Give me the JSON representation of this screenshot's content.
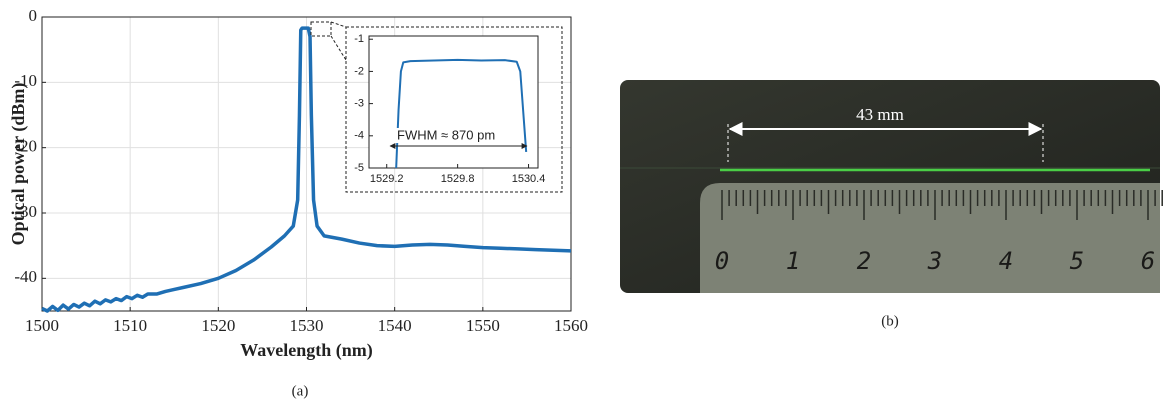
{
  "chart_data": [
    {
      "type": "line",
      "xlabel": "Wavelength (nm)",
      "ylabel": "Optical power (dBm)",
      "caption": "(a)",
      "xlim": [
        1500,
        1560
      ],
      "xticks": [
        1500,
        1510,
        1520,
        1530,
        1540,
        1550,
        1560
      ],
      "ylim": [
        -45,
        0
      ],
      "yticks": [
        -40,
        -30,
        -20,
        -10,
        0
      ],
      "grid": true,
      "x": [
        1500,
        1500.6,
        1501.2,
        1501.8,
        1502.4,
        1503,
        1503.6,
        1504.2,
        1504.8,
        1505.4,
        1506,
        1506.6,
        1507.2,
        1507.8,
        1508.4,
        1509,
        1509.6,
        1510.2,
        1510.8,
        1511.4,
        1512,
        1513,
        1514,
        1515,
        1516,
        1518,
        1520,
        1522,
        1524,
        1526,
        1527.5,
        1528.5,
        1529,
        1529.2,
        1529.35,
        1529.5,
        1530.2,
        1530.4,
        1530.55,
        1530.8,
        1531.2,
        1532,
        1534,
        1536,
        1538,
        1540,
        1542,
        1544,
        1546,
        1548,
        1550,
        1552,
        1554,
        1556,
        1558,
        1560
      ],
      "series": [
        {
          "color": "#1f6fb4",
          "values": [
            -44.6,
            -45,
            -44.3,
            -44.9,
            -44.1,
            -44.7,
            -44,
            -44.4,
            -43.8,
            -44.2,
            -43.5,
            -43.9,
            -43.3,
            -43.6,
            -43.1,
            -43.4,
            -42.8,
            -43.1,
            -42.6,
            -42.9,
            -42.4,
            -42.4,
            -42,
            -41.7,
            -41.4,
            -40.8,
            -40,
            -38.8,
            -37.2,
            -35.2,
            -33.5,
            -32,
            -28,
            -15,
            -2,
            -1.7,
            -1.7,
            -3,
            -15,
            -28,
            -32,
            -33.5,
            -34,
            -34.6,
            -35,
            -35.1,
            -34.9,
            -34.8,
            -34.9,
            -35.1,
            -35.3,
            -35.4,
            -35.5,
            -35.6,
            -35.7,
            -35.8
          ]
        }
      ]
    },
    {
      "type": "line",
      "annotation": "FWHM ≈ 870 pm",
      "xlim": [
        1529.05,
        1530.48
      ],
      "xticks": [
        1529.2,
        1529.8,
        1530.4
      ],
      "ylim": [
        -5,
        -0.9
      ],
      "yticks": [
        -5,
        -4,
        -3,
        -2,
        -1
      ],
      "grid": false,
      "x": [
        1529.28,
        1529.3,
        1529.32,
        1529.34,
        1529.4,
        1529.6,
        1529.8,
        1530,
        1530.2,
        1530.3,
        1530.33,
        1530.36,
        1530.38
      ],
      "series": [
        {
          "color": "#1f6fb4",
          "values": [
            -5,
            -3.2,
            -2,
            -1.72,
            -1.68,
            -1.66,
            -1.64,
            -1.66,
            -1.65,
            -1.7,
            -2,
            -3.5,
            -4.5
          ]
        }
      ]
    }
  ],
  "photo": {
    "annotation": "43 mm",
    "ruler_labels": [
      "0",
      "1",
      "2",
      "3",
      "4",
      "5",
      "6"
    ],
    "caption": "(b)"
  }
}
